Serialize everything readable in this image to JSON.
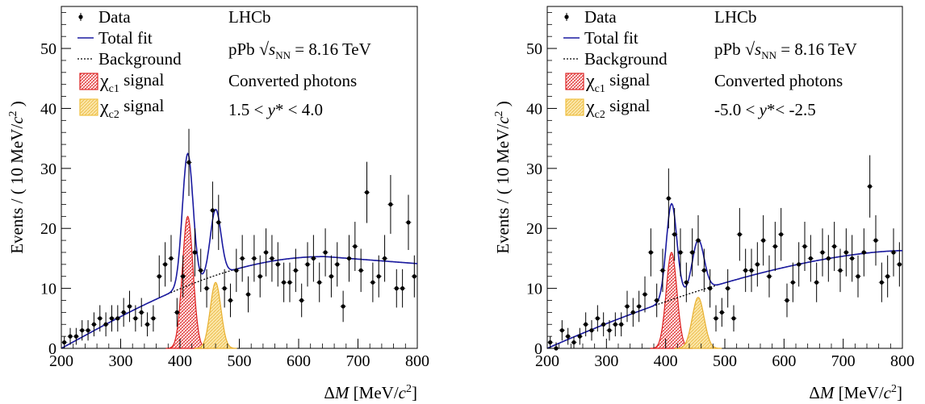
{
  "chart_data": [
    {
      "type": "scatter",
      "xlabel": "ΔM [MeV/c²]",
      "ylabel": "Events / ( 10 MeV/c² )",
      "xlim": [
        200,
        800
      ],
      "ylim": [
        0,
        57
      ],
      "xticks": [
        200,
        300,
        400,
        500,
        600,
        700,
        800
      ],
      "yticks": [
        0,
        10,
        20,
        30,
        40,
        50
      ],
      "legend_placement": "top-left",
      "info": [
        "LHCb",
        "pPb √sNN = 8.16 TeV",
        "Converted photons",
        "1.5 < y* < 4.0"
      ],
      "legend": [
        {
          "label": "Data",
          "style": "marker"
        },
        {
          "label": "Total fit",
          "style": "line",
          "color": "#1a1aa0"
        },
        {
          "label": "Background",
          "style": "dashed"
        },
        {
          "label": "χc1 signal",
          "style": "fill",
          "color": "#dd2222"
        },
        {
          "label": "χc2 signal",
          "style": "fill",
          "color": "#f0c040"
        }
      ],
      "data": {
        "x": [
          205,
          215,
          225,
          235,
          245,
          255,
          265,
          275,
          285,
          295,
          305,
          315,
          325,
          335,
          345,
          355,
          365,
          375,
          385,
          395,
          405,
          415,
          425,
          435,
          445,
          455,
          465,
          475,
          485,
          495,
          505,
          515,
          525,
          535,
          545,
          555,
          565,
          575,
          585,
          595,
          605,
          615,
          625,
          635,
          645,
          655,
          665,
          675,
          685,
          695,
          705,
          715,
          725,
          735,
          745,
          755,
          765,
          775,
          785,
          795
        ],
        "y": [
          1,
          2,
          2,
          3,
          3,
          4,
          5,
          4,
          5,
          5,
          6,
          7,
          5,
          6,
          4,
          5,
          12,
          14,
          15,
          6,
          12,
          31,
          16,
          13,
          10,
          23,
          21,
          10,
          8,
          13,
          15,
          9,
          15,
          12,
          16,
          15,
          14,
          11,
          11,
          13,
          8,
          14,
          15,
          11,
          16,
          12,
          14,
          7,
          15,
          17,
          13,
          26,
          11,
          12,
          15,
          24,
          10,
          10,
          21,
          12
        ],
        "err": [
          1,
          1.4,
          1.4,
          1.7,
          1.7,
          2,
          2.2,
          2,
          2.2,
          2.2,
          2.4,
          2.6,
          2.2,
          2.4,
          2,
          2.2,
          3.5,
          3.7,
          3.9,
          2.4,
          3.5,
          5.6,
          4,
          3.6,
          3.2,
          4.8,
          4.6,
          3.2,
          2.8,
          3.6,
          3.9,
          3,
          3.9,
          3.5,
          4,
          3.9,
          3.7,
          3.3,
          3.3,
          3.6,
          2.8,
          3.7,
          3.9,
          3.3,
          4,
          3.5,
          3.7,
          2.6,
          3.9,
          4.1,
          3.6,
          5.1,
          3.3,
          3.5,
          3.9,
          4.9,
          3.2,
          3.2,
          4.6,
          3.5
        ]
      },
      "fit": {
        "bkg_a": 0.15,
        "bkg_b": 0.0013,
        "bkg_c": 1.9,
        "bkg_d": 0.8,
        "c1": {
          "mean": 413,
          "sigma": 9,
          "amp": 22
        },
        "c2": {
          "mean": 460,
          "sigma": 9,
          "amp": 11
        }
      }
    },
    {
      "type": "scatter",
      "xlabel": "ΔM [MeV/c²]",
      "ylabel": "Events / ( 10 MeV/c² )",
      "xlim": [
        200,
        800
      ],
      "ylim": [
        0,
        57
      ],
      "xticks": [
        200,
        300,
        400,
        500,
        600,
        700,
        800
      ],
      "yticks": [
        0,
        10,
        20,
        30,
        40,
        50
      ],
      "legend_placement": "top-left",
      "info": [
        "LHCb",
        "pPb √sNN = 8.16 TeV",
        "Converted photons",
        "-5.0 < y*< -2.5"
      ],
      "legend": [
        {
          "label": "Data",
          "style": "marker"
        },
        {
          "label": "Total fit",
          "style": "line",
          "color": "#1a1aa0"
        },
        {
          "label": "Background",
          "style": "dashed"
        },
        {
          "label": "χc1 signal",
          "style": "fill",
          "color": "#dd2222"
        },
        {
          "label": "χc2 signal",
          "style": "fill",
          "color": "#f0c040"
        }
      ],
      "data": {
        "x": [
          205,
          215,
          225,
          235,
          245,
          255,
          265,
          275,
          285,
          295,
          305,
          315,
          325,
          335,
          345,
          355,
          365,
          375,
          385,
          395,
          405,
          415,
          425,
          435,
          445,
          455,
          465,
          475,
          485,
          495,
          505,
          515,
          525,
          535,
          545,
          555,
          565,
          575,
          585,
          595,
          605,
          615,
          625,
          635,
          645,
          655,
          665,
          675,
          685,
          695,
          705,
          715,
          725,
          735,
          745,
          755,
          765,
          775,
          785,
          795
        ],
        "y": [
          1,
          0,
          3,
          2,
          1,
          2,
          4,
          3,
          5,
          4,
          3,
          4,
          4,
          7,
          6,
          7,
          9,
          16,
          8,
          13,
          25,
          19,
          16,
          11,
          16,
          18,
          13,
          10,
          5,
          6,
          10,
          5,
          19,
          13,
          13,
          14,
          18,
          12,
          17,
          19,
          8,
          11,
          14,
          17,
          15,
          11,
          16,
          15,
          17,
          13,
          16,
          15,
          12,
          16,
          27,
          18,
          11,
          12,
          16,
          14
        ],
        "err": [
          1,
          1,
          1.7,
          1.4,
          1,
          1.4,
          2,
          1.7,
          2.2,
          2,
          1.7,
          2,
          2,
          2.6,
          2.4,
          2.6,
          3,
          4,
          2.8,
          3.6,
          5,
          4.4,
          4,
          3.3,
          4,
          4.2,
          3.6,
          3.2,
          2.2,
          2.4,
          3.2,
          2.2,
          4.4,
          3.6,
          3.6,
          3.7,
          4.2,
          3.5,
          4.1,
          4.4,
          2.8,
          3.3,
          3.7,
          4.1,
          3.9,
          3.3,
          4,
          3.9,
          4.1,
          3.6,
          4,
          3.9,
          3.5,
          4,
          5.2,
          4.2,
          3.3,
          3.5,
          4,
          3.7
        ]
      },
      "fit": {
        "bkg_a": 0.15,
        "bkg_b": 0.0013,
        "bkg_c": 1.85,
        "bkg_d": 0.95,
        "c1": {
          "mean": 410,
          "sigma": 9,
          "amp": 16
        },
        "c2": {
          "mean": 455,
          "sigma": 10,
          "amp": 8.5
        }
      }
    }
  ]
}
